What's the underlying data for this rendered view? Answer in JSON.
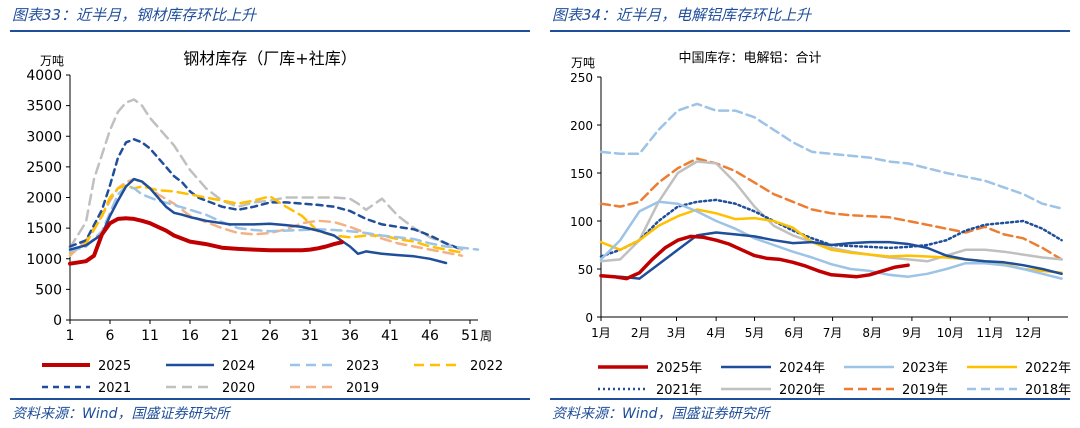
{
  "left_panel": {
    "figure_title": "图表33：近半月，钢材库存环比上升",
    "source": "资料来源：Wind，国盛证券研究所"
  },
  "right_panel": {
    "figure_title": "图表34：近半月，电解铝库存环比上升",
    "source": "资料来源：Wind，国盛证券研究所"
  },
  "chart_data": [
    {
      "type": "line",
      "title": "钢材库存（厂库+社库）",
      "ylabel": "万吨",
      "xlabel": "周",
      "ylim": [
        0,
        4000
      ],
      "yticks": [
        0,
        500,
        1000,
        1500,
        2000,
        2500,
        3000,
        3500,
        4000
      ],
      "xlim": [
        1,
        52
      ],
      "xticks": [
        1,
        6,
        11,
        16,
        21,
        26,
        31,
        36,
        41,
        46,
        51
      ],
      "legend_position": "bottom",
      "series": [
        {
          "name": "2025",
          "color": "#c00000",
          "dash": "solid",
          "width": 4,
          "x": [
            1,
            3,
            4,
            5,
            6,
            7,
            8,
            9,
            10,
            11,
            12,
            13,
            14,
            16,
            18,
            20,
            22,
            24,
            26,
            28,
            30,
            31,
            32,
            33,
            34,
            35
          ],
          "values": [
            920,
            960,
            1050,
            1400,
            1580,
            1650,
            1660,
            1650,
            1620,
            1580,
            1520,
            1460,
            1380,
            1280,
            1240,
            1180,
            1160,
            1150,
            1140,
            1140,
            1140,
            1150,
            1170,
            1200,
            1240,
            1270
          ]
        },
        {
          "name": "2024",
          "color": "#1f4e9a",
          "dash": "solid",
          "width": 2.5,
          "x": [
            1,
            3,
            5,
            6,
            7,
            8,
            9,
            10,
            11,
            12,
            13,
            14,
            15,
            16,
            17,
            18,
            19,
            20,
            21,
            22,
            24,
            26,
            28,
            30,
            32,
            34,
            36,
            37,
            38,
            40,
            42,
            44,
            46,
            48
          ],
          "values": [
            1150,
            1220,
            1400,
            1700,
            1950,
            2180,
            2300,
            2260,
            2150,
            2000,
            1850,
            1750,
            1720,
            1680,
            1650,
            1620,
            1600,
            1580,
            1560,
            1560,
            1560,
            1570,
            1550,
            1520,
            1460,
            1380,
            1200,
            1080,
            1120,
            1080,
            1060,
            1040,
            1000,
            930
          ]
        },
        {
          "name": "2023",
          "color": "#9dc3e6",
          "dash": "10,6",
          "width": 2.5,
          "x": [
            1,
            3,
            5,
            6,
            7,
            8,
            9,
            10,
            12,
            14,
            16,
            18,
            20,
            22,
            24,
            26,
            28,
            30,
            32,
            34,
            36,
            38,
            40,
            42,
            44,
            46,
            48,
            50,
            52
          ],
          "values": [
            1120,
            1200,
            1450,
            1750,
            2050,
            2180,
            2150,
            2050,
            1950,
            1880,
            1800,
            1720,
            1600,
            1500,
            1470,
            1450,
            1460,
            1470,
            1480,
            1470,
            1450,
            1420,
            1380,
            1350,
            1320,
            1250,
            1200,
            1180,
            1150
          ]
        },
        {
          "name": "2022",
          "color": "#ffc000",
          "dash": "10,6",
          "width": 2.5,
          "x": [
            1,
            3,
            5,
            6,
            7,
            8,
            9,
            10,
            12,
            14,
            16,
            18,
            20,
            22,
            24,
            26,
            28,
            30,
            32,
            34,
            36,
            38,
            40,
            42,
            44,
            46,
            48,
            50
          ],
          "values": [
            1100,
            1250,
            1700,
            2000,
            2150,
            2200,
            2150,
            2180,
            2120,
            2100,
            2050,
            2000,
            1950,
            1900,
            1950,
            2020,
            1850,
            1700,
            1450,
            1380,
            1350,
            1380,
            1380,
            1320,
            1280,
            1200,
            1150,
            1100
          ]
        },
        {
          "name": "2021",
          "color": "#1f4e9a",
          "dash": "6,5",
          "width": 2.5,
          "x": [
            1,
            3,
            5,
            6,
            7,
            8,
            9,
            10,
            11,
            12,
            13,
            14,
            15,
            16,
            17,
            18,
            20,
            22,
            24,
            26,
            28,
            30,
            32,
            34,
            36,
            38,
            40,
            42,
            44,
            46,
            48,
            50
          ],
          "values": [
            1200,
            1300,
            1800,
            2200,
            2650,
            2900,
            2950,
            2900,
            2800,
            2650,
            2500,
            2350,
            2250,
            2100,
            2000,
            1950,
            1850,
            1800,
            1850,
            1920,
            1920,
            1900,
            1880,
            1850,
            1780,
            1650,
            1560,
            1520,
            1480,
            1380,
            1250,
            1150
          ]
        },
        {
          "name": "2020",
          "color": "#c0c0c0",
          "dash": "10,6",
          "width": 2.5,
          "x": [
            1,
            3,
            4,
            5,
            6,
            7,
            8,
            9,
            10,
            11,
            12,
            14,
            16,
            18,
            20,
            22,
            24,
            26,
            28,
            30,
            32,
            34,
            36,
            37,
            38,
            40,
            42,
            44,
            46,
            48,
            50
          ],
          "values": [
            1180,
            1600,
            2300,
            2700,
            3100,
            3400,
            3550,
            3600,
            3500,
            3300,
            3150,
            2850,
            2450,
            2150,
            1950,
            1850,
            1920,
            1950,
            2000,
            2000,
            2000,
            2000,
            1980,
            1900,
            1800,
            1980,
            1700,
            1500,
            1350,
            1250,
            1150
          ]
        },
        {
          "name": "2019",
          "color": "#f4b183",
          "dash": "10,6",
          "width": 2.5,
          "x": [
            1,
            3,
            5,
            6,
            7,
            8,
            9,
            10,
            12,
            14,
            16,
            18,
            20,
            22,
            24,
            26,
            28,
            30,
            32,
            34,
            36,
            38,
            40,
            42,
            44,
            46,
            48,
            50
          ],
          "values": [
            1050,
            1300,
            1700,
            1950,
            2150,
            2250,
            2300,
            2250,
            2050,
            1900,
            1700,
            1600,
            1500,
            1420,
            1400,
            1420,
            1480,
            1580,
            1620,
            1600,
            1520,
            1420,
            1330,
            1250,
            1200,
            1150,
            1100,
            1050
          ]
        }
      ]
    },
    {
      "type": "line",
      "title": "中国库存：电解铝：合计",
      "ylabel": "万吨",
      "ylim": [
        0,
        250
      ],
      "yticks": [
        0,
        50,
        100,
        150,
        200,
        250
      ],
      "xlim": [
        0,
        365
      ],
      "xticks": [
        "1月",
        "2月",
        "3月",
        "4月",
        "5月",
        "6月",
        "7月",
        "8月",
        "9月",
        "10月",
        "11月",
        "12月"
      ],
      "legend_position": "bottom",
      "series": [
        {
          "name": "2025年",
          "color": "#c00000",
          "dash": "solid",
          "width": 3.5,
          "x": [
            0,
            10,
            20,
            30,
            40,
            50,
            60,
            70,
            80,
            90,
            100,
            110,
            120,
            130,
            140,
            150,
            160,
            170,
            180,
            190,
            200,
            210,
            220,
            230,
            240
          ],
          "values": [
            43,
            42,
            40,
            46,
            60,
            72,
            80,
            84,
            83,
            80,
            76,
            70,
            64,
            61,
            60,
            57,
            53,
            48,
            44,
            43,
            42,
            44,
            48,
            52,
            54
          ]
        },
        {
          "name": "2024年",
          "color": "#1f4e9a",
          "dash": "solid",
          "width": 2.5,
          "x": [
            0,
            15,
            30,
            45,
            60,
            75,
            90,
            105,
            120,
            135,
            150,
            165,
            180,
            195,
            210,
            225,
            240,
            255,
            270,
            285,
            300,
            315,
            330,
            345,
            360
          ],
          "values": [
            43,
            42,
            40,
            55,
            70,
            85,
            88,
            86,
            84,
            80,
            77,
            78,
            75,
            77,
            78,
            78,
            76,
            72,
            64,
            60,
            58,
            57,
            54,
            50,
            45
          ]
        },
        {
          "name": "2023年",
          "color": "#9dc3e6",
          "dash": "solid",
          "width": 2.5,
          "x": [
            0,
            15,
            30,
            45,
            60,
            75,
            90,
            105,
            120,
            135,
            150,
            165,
            180,
            195,
            210,
            225,
            240,
            255,
            270,
            285,
            300,
            315,
            330,
            345,
            360
          ],
          "values": [
            60,
            80,
            110,
            120,
            118,
            110,
            100,
            92,
            82,
            75,
            68,
            62,
            55,
            50,
            48,
            44,
            42,
            45,
            50,
            56,
            56,
            54,
            50,
            45,
            40
          ]
        },
        {
          "name": "2022年",
          "color": "#ffc000",
          "dash": "solid",
          "width": 2.5,
          "x": [
            0,
            15,
            30,
            45,
            60,
            75,
            90,
            105,
            120,
            135,
            150,
            165,
            180,
            195,
            210,
            225,
            240,
            255,
            270,
            285,
            300,
            315,
            330,
            345,
            360
          ],
          "values": [
            78,
            70,
            80,
            95,
            105,
            112,
            108,
            102,
            103,
            100,
            93,
            78,
            70,
            67,
            65,
            63,
            64,
            63,
            62,
            60,
            58,
            55,
            50,
            48,
            46
          ]
        },
        {
          "name": "2021年",
          "color": "#1f4e9a",
          "dash": "2,3",
          "width": 2.5,
          "x": [
            0,
            15,
            30,
            45,
            60,
            75,
            90,
            105,
            120,
            135,
            150,
            165,
            180,
            195,
            210,
            225,
            240,
            255,
            270,
            285,
            300,
            315,
            330,
            345,
            360
          ],
          "values": [
            63,
            70,
            80,
            100,
            115,
            120,
            122,
            118,
            110,
            100,
            90,
            82,
            75,
            74,
            73,
            72,
            73,
            75,
            80,
            90,
            96,
            98,
            100,
            92,
            80
          ]
        },
        {
          "name": "2020年",
          "color": "#c0c0c0",
          "dash": "solid",
          "width": 2.5,
          "x": [
            0,
            15,
            30,
            45,
            60,
            75,
            90,
            105,
            120,
            135,
            150,
            165,
            180,
            195,
            210,
            225,
            240,
            255,
            270,
            285,
            300,
            315,
            330,
            345,
            360
          ],
          "values": [
            58,
            60,
            80,
            120,
            150,
            162,
            160,
            140,
            115,
            95,
            85,
            78,
            72,
            68,
            65,
            62,
            60,
            58,
            64,
            70,
            70,
            68,
            65,
            62,
            60
          ]
        },
        {
          "name": "2019年",
          "color": "#ed7d31",
          "dash": "9,5",
          "width": 2.5,
          "x": [
            0,
            15,
            30,
            45,
            60,
            75,
            90,
            105,
            120,
            135,
            150,
            165,
            180,
            195,
            210,
            225,
            240,
            255,
            270,
            285,
            300,
            315,
            330,
            345,
            360
          ],
          "values": [
            118,
            115,
            120,
            140,
            155,
            165,
            160,
            152,
            140,
            128,
            120,
            112,
            108,
            106,
            105,
            104,
            100,
            96,
            92,
            88,
            94,
            86,
            82,
            72,
            60
          ]
        },
        {
          "name": "2018年",
          "color": "#9dc3e6",
          "dash": "9,5",
          "width": 2.5,
          "x": [
            0,
            15,
            30,
            45,
            60,
            75,
            90,
            105,
            120,
            135,
            150,
            165,
            180,
            195,
            210,
            225,
            240,
            255,
            270,
            285,
            300,
            315,
            330,
            345,
            360
          ],
          "values": [
            172,
            170,
            170,
            195,
            215,
            222,
            215,
            215,
            208,
            195,
            182,
            172,
            170,
            168,
            166,
            162,
            160,
            155,
            150,
            146,
            142,
            135,
            128,
            118,
            113
          ]
        }
      ]
    }
  ]
}
